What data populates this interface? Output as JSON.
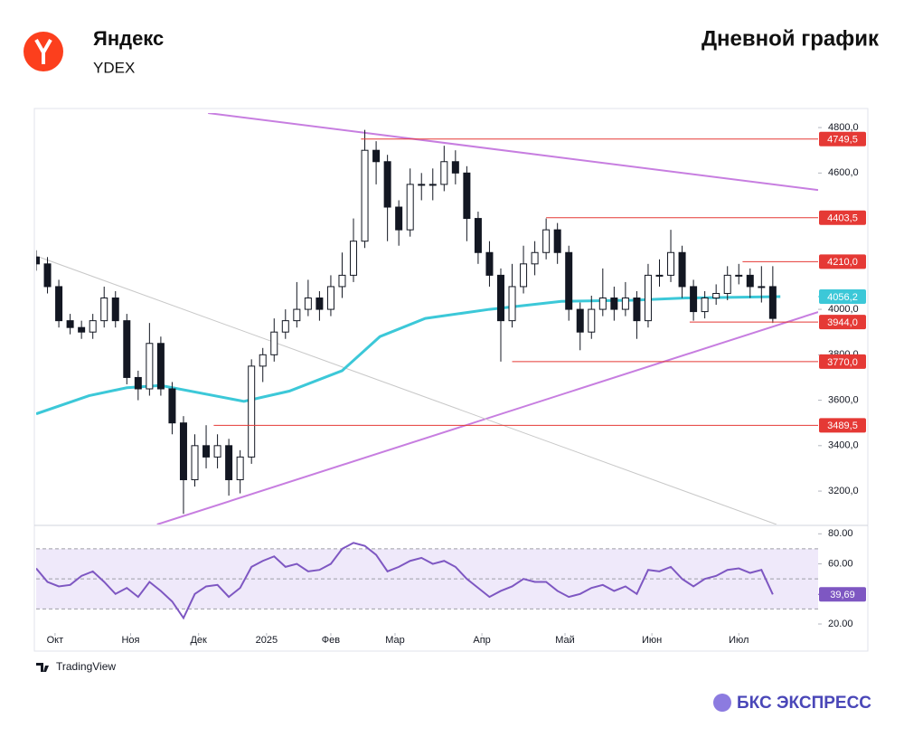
{
  "header": {
    "title": "Яндекс",
    "ticker": "YDEX",
    "chart_title": "Дневной график"
  },
  "chart_data": [
    {
      "type": "candlestick",
      "x": [
        0,
        3,
        6,
        9,
        12,
        15,
        18,
        21,
        24,
        27,
        30,
        33,
        36,
        39,
        42,
        45,
        48,
        51,
        54,
        57,
        60,
        63,
        66,
        69,
        72,
        75,
        78,
        81,
        84,
        87,
        90,
        93,
        96,
        99,
        102,
        105,
        108,
        111,
        114,
        117,
        120,
        123,
        126,
        129,
        132,
        135,
        138,
        141,
        144,
        147,
        150,
        153,
        156,
        159,
        162,
        165,
        168,
        171,
        174,
        177,
        180,
        183,
        186,
        189,
        192,
        195
      ],
      "open": [
        4230,
        4200,
        4100,
        3950,
        3920,
        3900,
        3950,
        4050,
        3950,
        3700,
        3650,
        3850,
        3650,
        3500,
        3250,
        3400,
        3350,
        3400,
        3250,
        3350,
        3750,
        3800,
        3900,
        3950,
        4000,
        4050,
        4000,
        4100,
        4150,
        4300,
        4700,
        4650,
        4450,
        4350,
        4550,
        4550,
        4550,
        4650,
        4600,
        4400,
        4250,
        4150,
        3950,
        4100,
        4200,
        4250,
        4350,
        4250,
        4000,
        3900,
        4000,
        4050,
        4000,
        4050,
        3950,
        4150,
        4150,
        4250,
        4100,
        3990,
        4050,
        4070,
        4150,
        4150,
        4100,
        4100
      ],
      "high": [
        4260,
        4230,
        4130,
        3980,
        3950,
        3980,
        4100,
        4080,
        3980,
        3730,
        3940,
        3880,
        3680,
        3530,
        3450,
        3490,
        3450,
        3430,
        3380,
        3780,
        3830,
        3960,
        4000,
        4120,
        4130,
        4080,
        4150,
        4250,
        4400,
        4790,
        4740,
        4680,
        4480,
        4620,
        4600,
        4620,
        4720,
        4700,
        4630,
        4430,
        4300,
        4180,
        4200,
        4280,
        4300,
        4400,
        4380,
        4280,
        4030,
        4060,
        4180,
        4100,
        4120,
        4080,
        4200,
        4220,
        4350,
        4280,
        4130,
        4080,
        4110,
        4190,
        4200,
        4180,
        4190,
        4190
      ],
      "low": [
        4170,
        4070,
        3920,
        3890,
        3870,
        3870,
        3920,
        3920,
        3670,
        3600,
        3620,
        3620,
        3450,
        3100,
        3220,
        3300,
        3300,
        3180,
        3190,
        3320,
        3680,
        3770,
        3870,
        3920,
        3970,
        3950,
        3970,
        4050,
        4120,
        4270,
        4550,
        4300,
        4280,
        4320,
        4480,
        4480,
        4520,
        4550,
        4300,
        4200,
        4100,
        3770,
        3920,
        4070,
        4150,
        4220,
        4200,
        3950,
        3820,
        3870,
        3970,
        3950,
        3970,
        3870,
        3920,
        4100,
        4120,
        4050,
        3950,
        3960,
        4020,
        4040,
        4110,
        4050,
        4030,
        3940
      ],
      "close": [
        4200,
        4100,
        3950,
        3920,
        3900,
        3950,
        4050,
        3950,
        3700,
        3650,
        3850,
        3650,
        3500,
        3250,
        3400,
        3350,
        3400,
        3250,
        3350,
        3750,
        3800,
        3900,
        3950,
        4000,
        4050,
        4000,
        4100,
        4150,
        4300,
        4700,
        4650,
        4450,
        4350,
        4550,
        4550,
        4550,
        4650,
        4600,
        4400,
        4250,
        4150,
        3950,
        4100,
        4200,
        4250,
        4350,
        4250,
        4000,
        3900,
        4000,
        4050,
        4000,
        4050,
        3950,
        4150,
        4150,
        4250,
        4100,
        3990,
        4050,
        4070,
        4150,
        4150,
        4100,
        4100,
        3960
      ],
      "up_color": "#ffffff",
      "down_color": "#131722",
      "xlim": [
        0,
        207
      ],
      "xticks": [
        {
          "value": 5,
          "label": "Окт"
        },
        {
          "value": 25,
          "label": "Ноя"
        },
        {
          "value": 43,
          "label": "Дек"
        },
        {
          "value": 61,
          "label": "2025"
        },
        {
          "value": 78,
          "label": "Фев"
        },
        {
          "value": 95,
          "label": "Мар"
        },
        {
          "value": 118,
          "label": "Апр"
        },
        {
          "value": 140,
          "label": "Май"
        },
        {
          "value": 163,
          "label": "Июн"
        },
        {
          "value": 186,
          "label": "Июл"
        }
      ],
      "ylim": [
        3053,
        4864
      ],
      "yticks": [
        {
          "value": 3200,
          "label": "3200,0"
        },
        {
          "value": 3400,
          "label": "3400,0"
        },
        {
          "value": 3600,
          "label": "3600,0"
        },
        {
          "value": 3800,
          "label": "3800,0"
        },
        {
          "value": 4000,
          "label": "4000,0"
        },
        {
          "value": 4600,
          "label": "4600,0"
        },
        {
          "value": 4800,
          "label": "4800,0"
        }
      ],
      "moving_average": {
        "color": "#3cc8d8",
        "x": [
          0,
          14,
          24,
          33,
          55,
          67,
          81,
          91,
          103,
          120,
          139,
          158,
          172,
          197
        ],
        "values": [
          3540,
          3620,
          3655,
          3665,
          3595,
          3640,
          3730,
          3880,
          3960,
          4000,
          4035,
          4040,
          4050,
          4056
        ],
        "current": {
          "value": 4056.2,
          "label": "4056,2"
        }
      },
      "level_color": "#e53935",
      "levels": [
        {
          "value": 4749.5,
          "label": "4749,5",
          "x": 86
        },
        {
          "value": 4403.5,
          "label": "4403,5",
          "x": 135
        },
        {
          "value": 4210,
          "label": "4210,0",
          "x": 187
        },
        {
          "value": 3944,
          "label": "3944,0",
          "x": 173
        },
        {
          "value": 3770,
          "label": "3770,0",
          "x": 126
        },
        {
          "value": 3489.5,
          "label": "3489,5",
          "x": 47
        }
      ],
      "trendlines": [
        {
          "color": "#c77ee0",
          "points": [
            [
              45.5,
              4864
            ],
            [
              207,
              4525
            ]
          ]
        },
        {
          "color": "#c77ee0",
          "points": [
            [
              32,
              3053
            ],
            [
              207,
              3988
            ]
          ]
        },
        {
          "color": "#c8c8c8",
          "points": [
            [
              0,
              4235
            ],
            [
              196,
              3053
            ]
          ]
        }
      ]
    },
    {
      "type": "line",
      "x": [
        0,
        3,
        6,
        9,
        12,
        15,
        18,
        21,
        24,
        27,
        30,
        33,
        36,
        39,
        42,
        45,
        48,
        51,
        54,
        57,
        60,
        63,
        66,
        69,
        72,
        75,
        78,
        81,
        84,
        87,
        90,
        93,
        96,
        99,
        102,
        105,
        108,
        111,
        114,
        117,
        120,
        123,
        126,
        129,
        132,
        135,
        138,
        141,
        144,
        147,
        150,
        153,
        156,
        159,
        162,
        165,
        168,
        171,
        174,
        177,
        180,
        183,
        186,
        189,
        192,
        195
      ],
      "values": [
        57,
        48,
        45,
        46,
        52,
        55,
        48,
        40,
        44,
        38,
        48,
        42,
        35,
        24,
        40,
        45,
        46,
        38,
        44,
        58,
        62,
        65,
        58,
        60,
        55,
        56,
        60,
        70,
        74,
        72,
        66,
        55,
        58,
        62,
        64,
        60,
        62,
        58,
        50,
        44,
        38,
        42,
        45,
        50,
        48,
        48,
        42,
        38,
        40,
        44,
        46,
        42,
        45,
        40,
        56,
        55,
        58,
        50,
        45,
        50,
        52,
        56,
        57,
        54,
        56,
        39.69
      ],
      "color": "#7e57c2",
      "band_color": "#efe9fa",
      "band": [
        30,
        70
      ],
      "midline": 50,
      "ylim": [
        14,
        85
      ],
      "yticks": [
        {
          "value": 20,
          "label": "20.00"
        },
        {
          "value": 60,
          "label": "60.00"
        },
        {
          "value": 80,
          "label": "80.00"
        }
      ],
      "current": {
        "value": 39.69,
        "label": "39,69"
      }
    }
  ],
  "footer": {
    "source": "TradingView",
    "brand": "БКС ЭКСПРЕСС"
  }
}
